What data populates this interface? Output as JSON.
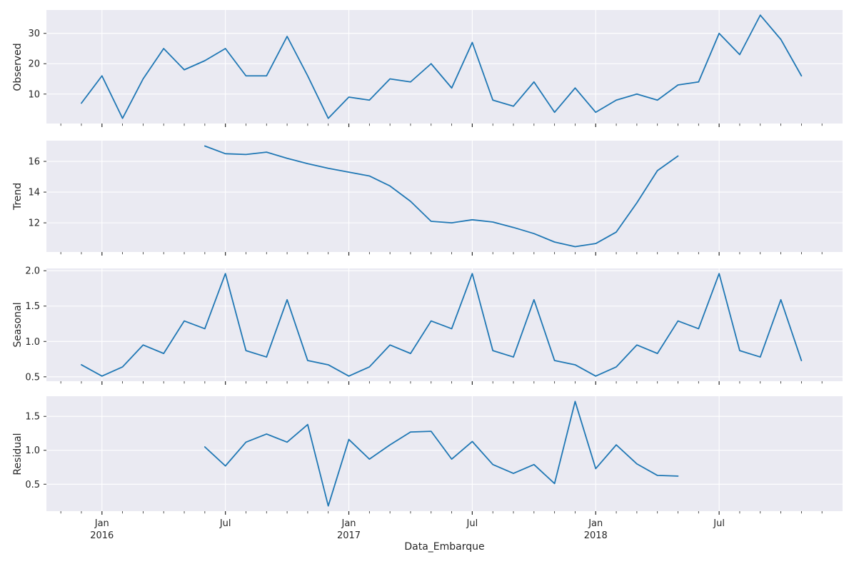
{
  "chart_data": {
    "type": "line",
    "xlabel": "Data_Embarque",
    "x_unit": "month",
    "x_range_months": [
      "2015-12",
      "2018-11"
    ],
    "xlim_month_index": [
      -1.7,
      37.0
    ],
    "line_color": "#1f77b4",
    "plot_bg_color": "#eaeaf2",
    "grid_color": "#ffffff",
    "text_color": "#262626",
    "x_tick_labels": [
      {
        "month_index": 1,
        "line1": "Jan",
        "line2": "2016"
      },
      {
        "month_index": 7,
        "line1": "Jul",
        "line2": ""
      },
      {
        "month_index": 13,
        "line1": "Jan",
        "line2": "2017"
      },
      {
        "month_index": 19,
        "line1": "Jul",
        "line2": ""
      },
      {
        "month_index": 25,
        "line1": "Jan",
        "line2": "2018"
      },
      {
        "month_index": 31,
        "line1": "Jul",
        "line2": ""
      }
    ],
    "panels": [
      {
        "ylabel": "Observed",
        "start_month_index": 0,
        "ylim": [
          0.3,
          37.7
        ],
        "ytick_labels": [
          "10",
          "20",
          "30"
        ],
        "ytick_values": [
          10,
          20,
          30
        ],
        "values": [
          7,
          16,
          2,
          15,
          25,
          18,
          21,
          25,
          16,
          16,
          29,
          16,
          2,
          9,
          8,
          15,
          14,
          20,
          12,
          27,
          8,
          6,
          14,
          4,
          12,
          4,
          8,
          10,
          8,
          13,
          14,
          30,
          23,
          36,
          28,
          16
        ]
      },
      {
        "ylabel": "Trend",
        "start_month_index": 6,
        "ylim": [
          10.1,
          17.35
        ],
        "ytick_labels": [
          "12",
          "14",
          "16"
        ],
        "ytick_values": [
          12,
          14,
          16
        ],
        "values": [
          17.0,
          16.5,
          16.45,
          16.6,
          16.2,
          15.85,
          15.55,
          15.3,
          15.05,
          14.4,
          13.4,
          12.1,
          12.0,
          12.2,
          12.05,
          11.7,
          11.3,
          10.75,
          10.45,
          10.65,
          11.4,
          13.3,
          15.4,
          16.35
        ]
      },
      {
        "ylabel": "Seasonal",
        "start_month_index": 0,
        "ylim": [
          0.4375,
          2.0325
        ],
        "ytick_labels": [
          "0.5",
          "1.0",
          "1.5",
          "2.0"
        ],
        "ytick_values": [
          0.5,
          1.0,
          1.5,
          2.0
        ],
        "values": [
          0.67,
          0.51,
          0.64,
          0.95,
          0.83,
          1.29,
          1.18,
          1.96,
          0.87,
          0.78,
          1.59,
          0.73,
          0.67,
          0.51,
          0.64,
          0.95,
          0.83,
          1.29,
          1.18,
          1.96,
          0.87,
          0.78,
          1.59,
          0.73,
          0.67,
          0.51,
          0.64,
          0.95,
          0.83,
          1.29,
          1.18,
          1.96,
          0.87,
          0.78,
          1.59,
          0.73
        ]
      },
      {
        "ylabel": "Residual",
        "start_month_index": 6,
        "ylim": [
          0.103,
          1.797
        ],
        "ytick_labels": [
          "0.5",
          "1.0",
          "1.5"
        ],
        "ytick_values": [
          0.5,
          1.0,
          1.5
        ],
        "values": [
          1.05,
          0.77,
          1.12,
          1.24,
          1.12,
          1.38,
          0.18,
          1.16,
          0.87,
          1.08,
          1.27,
          1.28,
          0.87,
          1.13,
          0.79,
          0.66,
          0.79,
          0.51,
          1.72,
          0.73,
          1.08,
          0.8,
          0.63,
          0.62
        ]
      }
    ]
  }
}
